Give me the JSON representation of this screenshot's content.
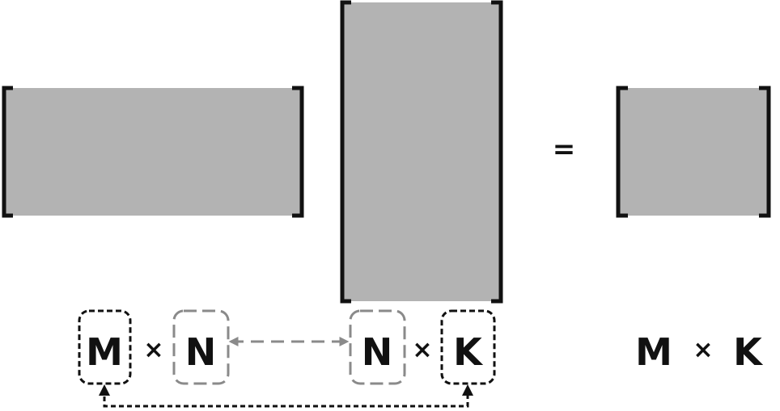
{
  "matrix_a": {
    "rows": "M",
    "cols": "N",
    "times": "×"
  },
  "matrix_b": {
    "rows": "N",
    "cols": "K",
    "times": "×"
  },
  "equals": "=",
  "result": {
    "rows": "M",
    "cols": "K",
    "times": "×"
  },
  "colors": {
    "matrix_fill": "#b3b3b3",
    "bracket": "#111111",
    "text": "#111111",
    "match_highlight": "#8a8a8a",
    "outer_highlight": "#111111"
  }
}
